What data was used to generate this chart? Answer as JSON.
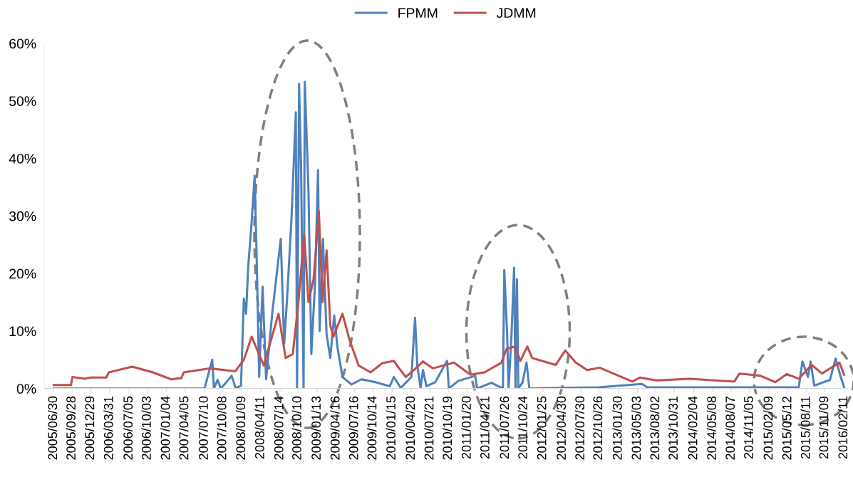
{
  "chart_data": {
    "type": "line",
    "legend": "top",
    "marker": "none",
    "line_style": "solid",
    "grid": false,
    "xlim": [
      "2005-05-15",
      "2016-03-01"
    ],
    "xticks": [
      {
        "value": "2005-06-30",
        "label": "2005/06/30"
      },
      {
        "value": "2005-09-28",
        "label": "2005/09/28"
      },
      {
        "value": "2005-12-29",
        "label": "2005/12/29"
      },
      {
        "value": "2006-03-31",
        "label": "2006/03/31"
      },
      {
        "value": "2006-07-05",
        "label": "2006/07/05"
      },
      {
        "value": "2006-10-03",
        "label": "2006/10/03"
      },
      {
        "value": "2007-01-04",
        "label": "2007/01/04"
      },
      {
        "value": "2007-04-05",
        "label": "2007/04/05"
      },
      {
        "value": "2007-07-10",
        "label": "2007/07/10"
      },
      {
        "value": "2007-10-08",
        "label": "2007/10/08"
      },
      {
        "value": "2008-01-09",
        "label": "2008/01/09"
      },
      {
        "value": "2008-04-11",
        "label": "2008/04/11"
      },
      {
        "value": "2008-07-14",
        "label": "2008/07/14"
      },
      {
        "value": "2008-10-10",
        "label": "2008/10/10"
      },
      {
        "value": "2009-01-13",
        "label": "2009/01/13"
      },
      {
        "value": "2009-04-16",
        "label": "2009/04/16"
      },
      {
        "value": "2009-07-16",
        "label": "2009/07/16"
      },
      {
        "value": "2009-10-14",
        "label": "2009/10/14"
      },
      {
        "value": "2010-01-15",
        "label": "2010/01/15"
      },
      {
        "value": "2010-04-20",
        "label": "2010/04/20"
      },
      {
        "value": "2010-07-21",
        "label": "2010/07/21"
      },
      {
        "value": "2010-10-19",
        "label": "2010/10/19"
      },
      {
        "value": "2011-01-20",
        "label": "2011/01/20"
      },
      {
        "value": "2011-04-21",
        "label": "2011/04/21"
      },
      {
        "value": "2011-07-26",
        "label": "2011/07/26"
      },
      {
        "value": "2011-10-24",
        "label": "2011/10/24"
      },
      {
        "value": "2012-01-25",
        "label": "2012/01/25"
      },
      {
        "value": "2012-04-30",
        "label": "2012/04/30"
      },
      {
        "value": "2012-07-30",
        "label": "2012/07/30"
      },
      {
        "value": "2012-10-26",
        "label": "2012/10/26"
      },
      {
        "value": "2013-01-30",
        "label": "2013/01/30"
      },
      {
        "value": "2013-05-03",
        "label": "2013/05/03"
      },
      {
        "value": "2013-08-02",
        "label": "2013/08/02"
      },
      {
        "value": "2013-10-31",
        "label": "2013/10/31"
      },
      {
        "value": "2014-02-04",
        "label": "2014/02/04"
      },
      {
        "value": "2014-05-08",
        "label": "2014/05/08"
      },
      {
        "value": "2014-08-07",
        "label": "2014/08/07"
      },
      {
        "value": "2014-11-05",
        "label": "2014/11/05"
      },
      {
        "value": "2015-02-09",
        "label": "2015/02/09"
      },
      {
        "value": "2015-05-12",
        "label": "2015/05/12"
      },
      {
        "value": "2015-08-11",
        "label": "2015/08/11"
      },
      {
        "value": "2015-11-09",
        "label": "2015/11/09"
      },
      {
        "value": "2016-02-11",
        "label": "2016/02/11"
      }
    ],
    "ylim": [
      0,
      60
    ],
    "yticks": [
      {
        "value": 0,
        "label": "0%"
      },
      {
        "value": 10,
        "label": "10%"
      },
      {
        "value": 20,
        "label": "20%"
      },
      {
        "value": 30,
        "label": "30%"
      },
      {
        "value": 40,
        "label": "40%"
      },
      {
        "value": 50,
        "label": "50%"
      },
      {
        "value": 60,
        "label": "60%"
      }
    ],
    "series": [
      {
        "name": "FPMM",
        "color": "#4f81bd",
        "x": [
          "2005-06-30",
          "2007-07-10",
          "2007-08-17",
          "2007-08-25",
          "2007-09-12",
          "2007-09-28",
          "2007-11-20",
          "2007-12-10",
          "2008-01-05",
          "2008-01-19",
          "2008-01-30",
          "2008-02-09",
          "2008-02-26",
          "2008-03-12",
          "2008-03-23",
          "2008-04-03",
          "2008-04-20",
          "2008-05-07",
          "2008-06-06",
          "2008-07-18",
          "2008-08-04",
          "2008-08-18",
          "2008-09-08",
          "2008-09-30",
          "2008-10-06",
          "2008-10-16",
          "2008-10-26",
          "2008-11-07",
          "2008-11-13",
          "2008-12-01",
          "2008-12-15",
          "2009-01-02",
          "2009-01-17",
          "2009-01-25",
          "2009-02-10",
          "2009-02-28",
          "2009-03-18",
          "2009-04-06",
          "2009-04-23",
          "2009-05-17",
          "2009-06-30",
          "2009-08-18",
          "2009-10-25",
          "2010-01-04",
          "2010-01-24",
          "2010-02-27",
          "2010-04-20",
          "2010-05-08",
          "2010-05-19",
          "2010-06-04",
          "2010-06-16",
          "2010-07-03",
          "2010-08-15",
          "2010-10-12",
          "2010-10-21",
          "2010-12-05",
          "2011-02-27",
          "2011-03-09",
          "2011-05-18",
          "2011-07-13",
          "2011-07-20",
          "2011-08-03",
          "2011-08-10",
          "2011-08-24",
          "2011-09-06",
          "2011-09-13",
          "2011-09-20",
          "2011-09-27",
          "2011-10-17",
          "2011-11-06",
          "2011-11-20",
          "2012-10-25",
          "2013-05-26",
          "2013-06-20",
          "2015-07-04",
          "2015-07-22",
          "2015-08-18",
          "2015-08-31",
          "2015-09-18",
          "2015-12-04",
          "2016-01-01",
          "2016-01-26",
          "2016-02-11"
        ],
        "values": [
          0,
          0,
          5,
          0,
          1.5,
          0,
          2.2,
          0,
          0.5,
          15.6,
          13,
          21,
          28.8,
          37,
          21,
          2,
          17.7,
          1.6,
          13,
          26,
          7.8,
          15.6,
          29,
          48,
          0,
          53,
          38,
          0,
          53.3,
          34.5,
          6,
          18,
          38,
          10,
          26,
          9.4,
          5.3,
          12.7,
          7,
          2,
          0.7,
          1.6,
          1.1,
          0.4,
          2,
          0.1,
          2,
          12.3,
          4,
          0.1,
          3.2,
          0.4,
          1.1,
          4.8,
          0,
          1.3,
          2.2,
          0,
          1,
          0,
          20.6,
          9.4,
          0,
          9,
          21,
          0,
          19,
          0,
          1,
          4.5,
          0,
          0.2,
          0.8,
          0.2,
          0.2,
          4.7,
          2,
          4.7,
          0.5,
          1.5,
          5.2,
          2,
          0.3
        ]
      },
      {
        "name": "JDMM",
        "color": "#c0504d",
        "x": [
          "2005-06-30",
          "2005-09-23",
          "2005-09-30",
          "2005-11-30",
          "2005-12-29",
          "2006-03-15",
          "2006-03-27",
          "2006-07-20",
          "2006-10-30",
          "2007-01-27",
          "2007-03-18",
          "2007-03-30",
          "2007-08-03",
          "2007-12-08",
          "2008-01-19",
          "2008-02-26",
          "2008-04-26",
          "2008-07-07",
          "2008-08-11",
          "2008-09-15",
          "2008-10-10",
          "2008-11-10",
          "2008-12-01",
          "2008-12-26",
          "2009-01-21",
          "2009-02-08",
          "2009-02-28",
          "2009-03-18",
          "2009-04-02",
          "2009-05-17",
          "2009-06-20",
          "2009-08-04",
          "2009-10-02",
          "2009-11-28",
          "2010-01-24",
          "2010-02-17",
          "2010-03-24",
          "2010-05-02",
          "2010-06-16",
          "2010-08-04",
          "2010-11-15",
          "2011-02-04",
          "2011-04-14",
          "2011-07-06",
          "2011-07-31",
          "2011-09-09",
          "2011-10-07",
          "2011-11-10",
          "2011-12-04",
          "2012-03-28",
          "2012-05-14",
          "2012-07-05",
          "2012-08-29",
          "2012-10-31",
          "2013-04-08",
          "2013-05-16",
          "2013-08-02",
          "2014-01-15",
          "2014-08-22",
          "2014-09-16",
          "2014-11-10",
          "2014-12-28",
          "2015-03-11",
          "2015-05-06",
          "2015-07-04",
          "2015-09-05",
          "2015-10-26",
          "2016-01-20",
          "2016-02-11"
        ],
        "values": [
          0.6,
          0.6,
          2.0,
          1.7,
          1.9,
          1.9,
          2.8,
          3.8,
          2.8,
          1.6,
          1.8,
          2.8,
          3.5,
          3.0,
          5.0,
          9.0,
          4.0,
          13,
          5.3,
          6,
          14,
          26.7,
          15,
          19,
          30.8,
          15,
          24,
          11,
          9,
          13,
          8.5,
          4,
          2.8,
          4.4,
          4.8,
          3.6,
          2.0,
          3.2,
          4.7,
          3.5,
          4.5,
          2.4,
          2.8,
          4.5,
          6.9,
          7.3,
          4.8,
          7.3,
          5.3,
          4.1,
          6.6,
          4.5,
          3.2,
          3.6,
          1.2,
          1.9,
          1.4,
          1.7,
          1.2,
          2.6,
          2.4,
          2.2,
          1.1,
          2.5,
          1.7,
          4.1,
          2.6,
          4.5,
          2.4
        ]
      }
    ]
  }
}
